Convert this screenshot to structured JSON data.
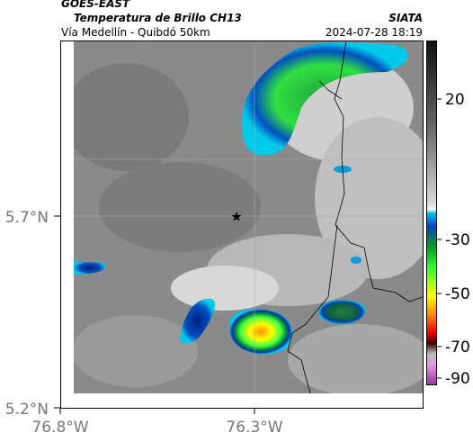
{
  "header": {
    "source": "GOES-EAST",
    "product": "Temperatura de Brillo CH13",
    "place": "Vía Medellín - Quibdó 50km",
    "agency": "SIATA",
    "datetime": "2024-07-28 18:19"
  },
  "map": {
    "lat_labels": [
      "5.7°N",
      "5.2°N"
    ],
    "lon_labels": [
      "76.8°W",
      "76.3°W"
    ]
  },
  "colorbar": {
    "ticks": [
      20,
      -30,
      -50,
      -70,
      -90
    ]
  }
}
